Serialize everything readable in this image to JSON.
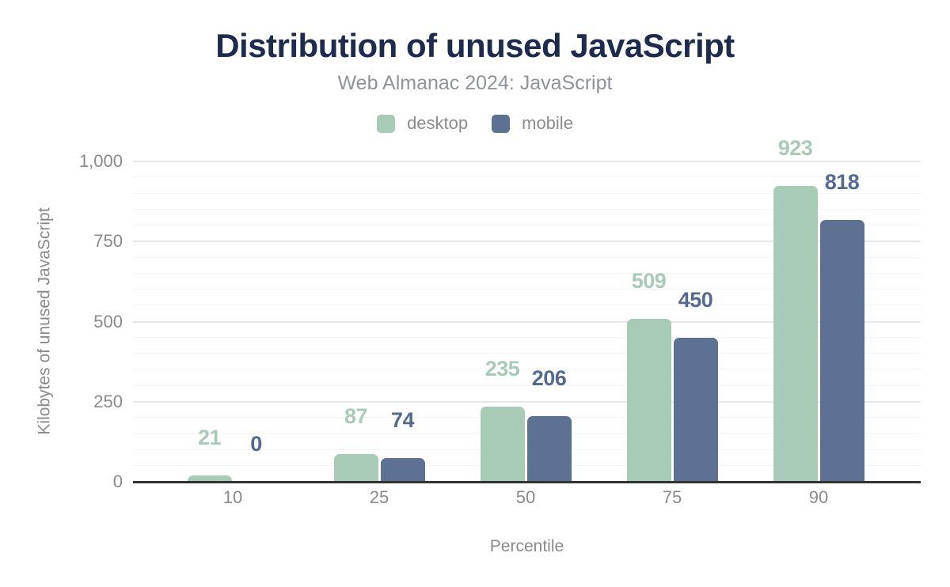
{
  "figure": {
    "title": "Distribution of unused JavaScript",
    "subtitle": "Web Almanac 2024: JavaScript"
  },
  "legend": {
    "items": [
      {
        "label": "desktop",
        "color": "#a8cbb7"
      },
      {
        "label": "mobile",
        "color": "#5d7192"
      }
    ]
  },
  "chart_data": {
    "type": "bar",
    "title": "Distribution of unused JavaScript",
    "subtitle": "Web Almanac 2024: JavaScript",
    "categories": [
      "10",
      "25",
      "50",
      "75",
      "90"
    ],
    "series": [
      {
        "name": "desktop",
        "color": "#a8cbb7",
        "label_color": "#a8cbb7",
        "values": [
          21,
          87,
          235,
          509,
          923
        ]
      },
      {
        "name": "mobile",
        "color": "#5d7192",
        "label_color": "#546a8e",
        "values": [
          0,
          74,
          206,
          450,
          818
        ]
      }
    ],
    "xlabel": "Percentile",
    "ylabel": "Kilobytes of unused JavaScript",
    "ylim": [
      0,
      1000
    ],
    "yticks": [
      0,
      250,
      500,
      750,
      1000
    ],
    "ytick_labels": [
      "0",
      "250",
      "500",
      "750",
      "1,000"
    ],
    "minor_grid_step": 50,
    "grid": true,
    "legend_position": "top",
    "bar_value_labels": true
  },
  "colors": {
    "title": "#1e2b4f",
    "subtitle": "#909399",
    "tick_labels": "#8a8a8a",
    "axis_line": "#333333",
    "grid_major": "#e7e7e7",
    "grid_minor": "#f4f4f4",
    "background": "#ffffff"
  }
}
